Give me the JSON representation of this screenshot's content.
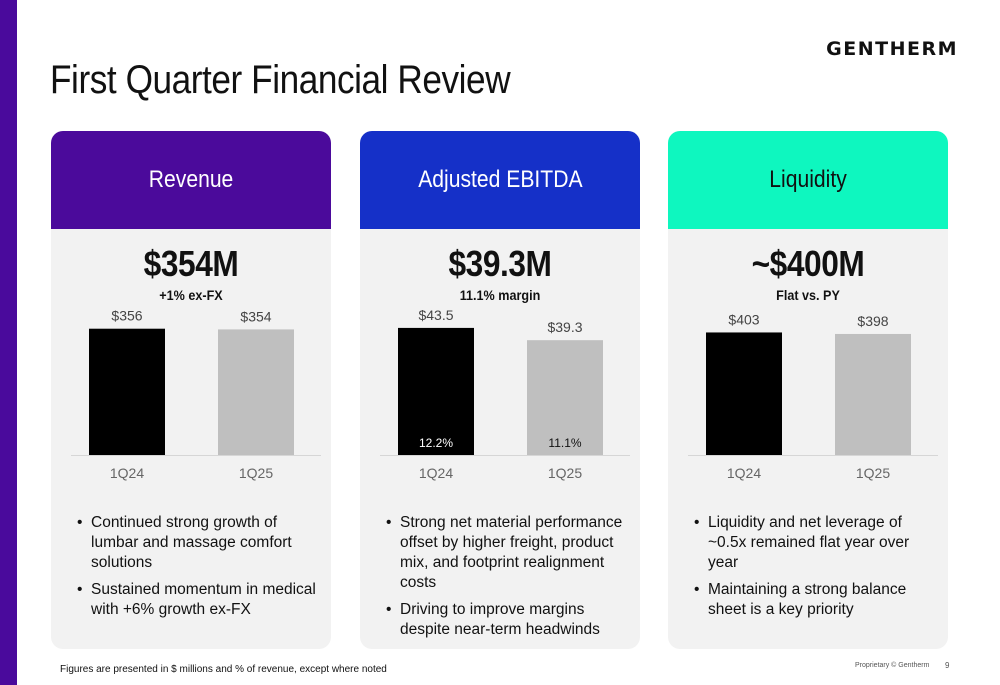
{
  "brand": {
    "logo": "GENTHERM",
    "accent": "#4a0a9c"
  },
  "title": "First Quarter Financial Review",
  "cards": [
    {
      "header": "Revenue",
      "header_bg": "#4b0a9b",
      "header_fg": "#ffffff",
      "metric": "$354M",
      "sub": "+1% ex-FX",
      "bullets": [
        "Continued strong growth of lumbar and massage comfort solutions",
        "Sustained momentum in medical with +6% growth ex-FX"
      ]
    },
    {
      "header": "Adjusted EBITDA",
      "header_bg": "#1530c8",
      "header_fg": "#ffffff",
      "metric": "$39.3M",
      "sub": "11.1% margin",
      "bullets": [
        "Strong net material performance offset by higher freight, product mix, and footprint realignment costs",
        "Driving to improve margins despite near-term headwinds"
      ]
    },
    {
      "header": "Liquidity",
      "header_bg": "#0ef7bf",
      "header_fg": "#111111",
      "metric": "~$400M",
      "sub": "Flat vs. PY",
      "bullets": [
        "Liquidity and net leverage of ~0.5x remained flat year over year",
        "Maintaining a strong balance sheet is a key priority"
      ]
    }
  ],
  "chart_data": [
    {
      "type": "bar",
      "categories": [
        "1Q24",
        "1Q25"
      ],
      "values": [
        356,
        354
      ],
      "value_labels": [
        "$356",
        "$354"
      ],
      "colors": [
        "#000000",
        "#bfbfbf"
      ],
      "ylim": [
        0,
        420
      ]
    },
    {
      "type": "bar",
      "categories": [
        "1Q24",
        "1Q25"
      ],
      "values": [
        43.5,
        39.3
      ],
      "value_labels": [
        "$43.5",
        "$39.3"
      ],
      "inner_labels": [
        "12.2%",
        "11.1%"
      ],
      "colors": [
        "#000000",
        "#bfbfbf"
      ],
      "ylim": [
        0,
        51
      ]
    },
    {
      "type": "bar",
      "categories": [
        "1Q24",
        "1Q25"
      ],
      "values": [
        403,
        398
      ],
      "value_labels": [
        "$403",
        "$398"
      ],
      "colors": [
        "#000000",
        "#bfbfbf"
      ],
      "ylim": [
        0,
        490
      ]
    }
  ],
  "footer": {
    "note": "Figures are presented in $ millions and % of revenue, except where noted",
    "proprietary": "Proprietary © Gentherm",
    "page": "9"
  }
}
